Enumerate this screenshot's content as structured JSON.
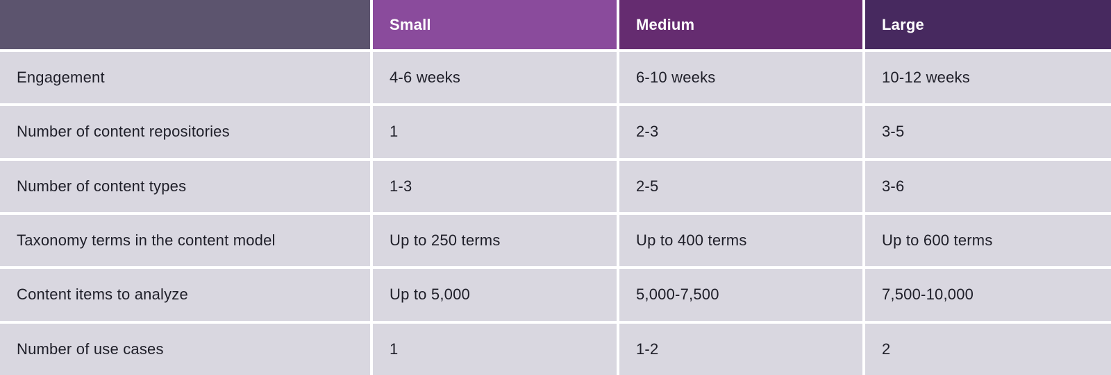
{
  "colors": {
    "corner_header_bg": "#5c546e",
    "small_header_bg": "#8a4b9c",
    "medium_header_bg": "#652c70",
    "large_header_bg": "#47295f",
    "body_cell_bg": "#d9d7e0",
    "body_text": "#1e1e28",
    "header_text": "#ffffff",
    "gutter": "#ffffff"
  },
  "table": {
    "columns": [
      {
        "label": "",
        "header_bg": "#5c546e"
      },
      {
        "label": "Small",
        "header_bg": "#8a4b9c"
      },
      {
        "label": "Medium",
        "header_bg": "#652c70"
      },
      {
        "label": "Large",
        "header_bg": "#47295f"
      }
    ],
    "rows": [
      {
        "label": "Engagement",
        "values": [
          "4-6 weeks",
          "6-10 weeks",
          "10-12 weeks"
        ]
      },
      {
        "label": "Number of content repositories",
        "values": [
          "1",
          "2-3",
          "3-5"
        ]
      },
      {
        "label": "Number of content types",
        "values": [
          "1-3",
          "2-5",
          "3-6"
        ]
      },
      {
        "label": "Taxonomy terms in the content model",
        "values": [
          "Up to 250 terms",
          "Up to 400 terms",
          "Up to 600 terms"
        ]
      },
      {
        "label": "Content items to analyze",
        "values": [
          "Up to 5,000",
          "5,000-7,500",
          "7,500-10,000"
        ]
      },
      {
        "label": "Number of use cases",
        "values": [
          "1",
          "1-2",
          "2"
        ]
      }
    ]
  },
  "chart_data": {
    "type": "table",
    "title": "",
    "columns": [
      "",
      "Small",
      "Medium",
      "Large"
    ],
    "rows": [
      [
        "Engagement",
        "4-6 weeks",
        "6-10 weeks",
        "10-12 weeks"
      ],
      [
        "Number of content repositories",
        "1",
        "2-3",
        "3-5"
      ],
      [
        "Number of content types",
        "1-3",
        "2-5",
        "3-6"
      ],
      [
        "Taxonomy terms in the content model",
        "Up to 250 terms",
        "Up to 400 terms",
        "Up to 600 terms"
      ],
      [
        "Content items to analyze",
        "Up to 5,000",
        "5,000-7,500",
        "7,500-10,000"
      ],
      [
        "Number of use cases",
        "1",
        "1-2",
        "2"
      ]
    ]
  }
}
